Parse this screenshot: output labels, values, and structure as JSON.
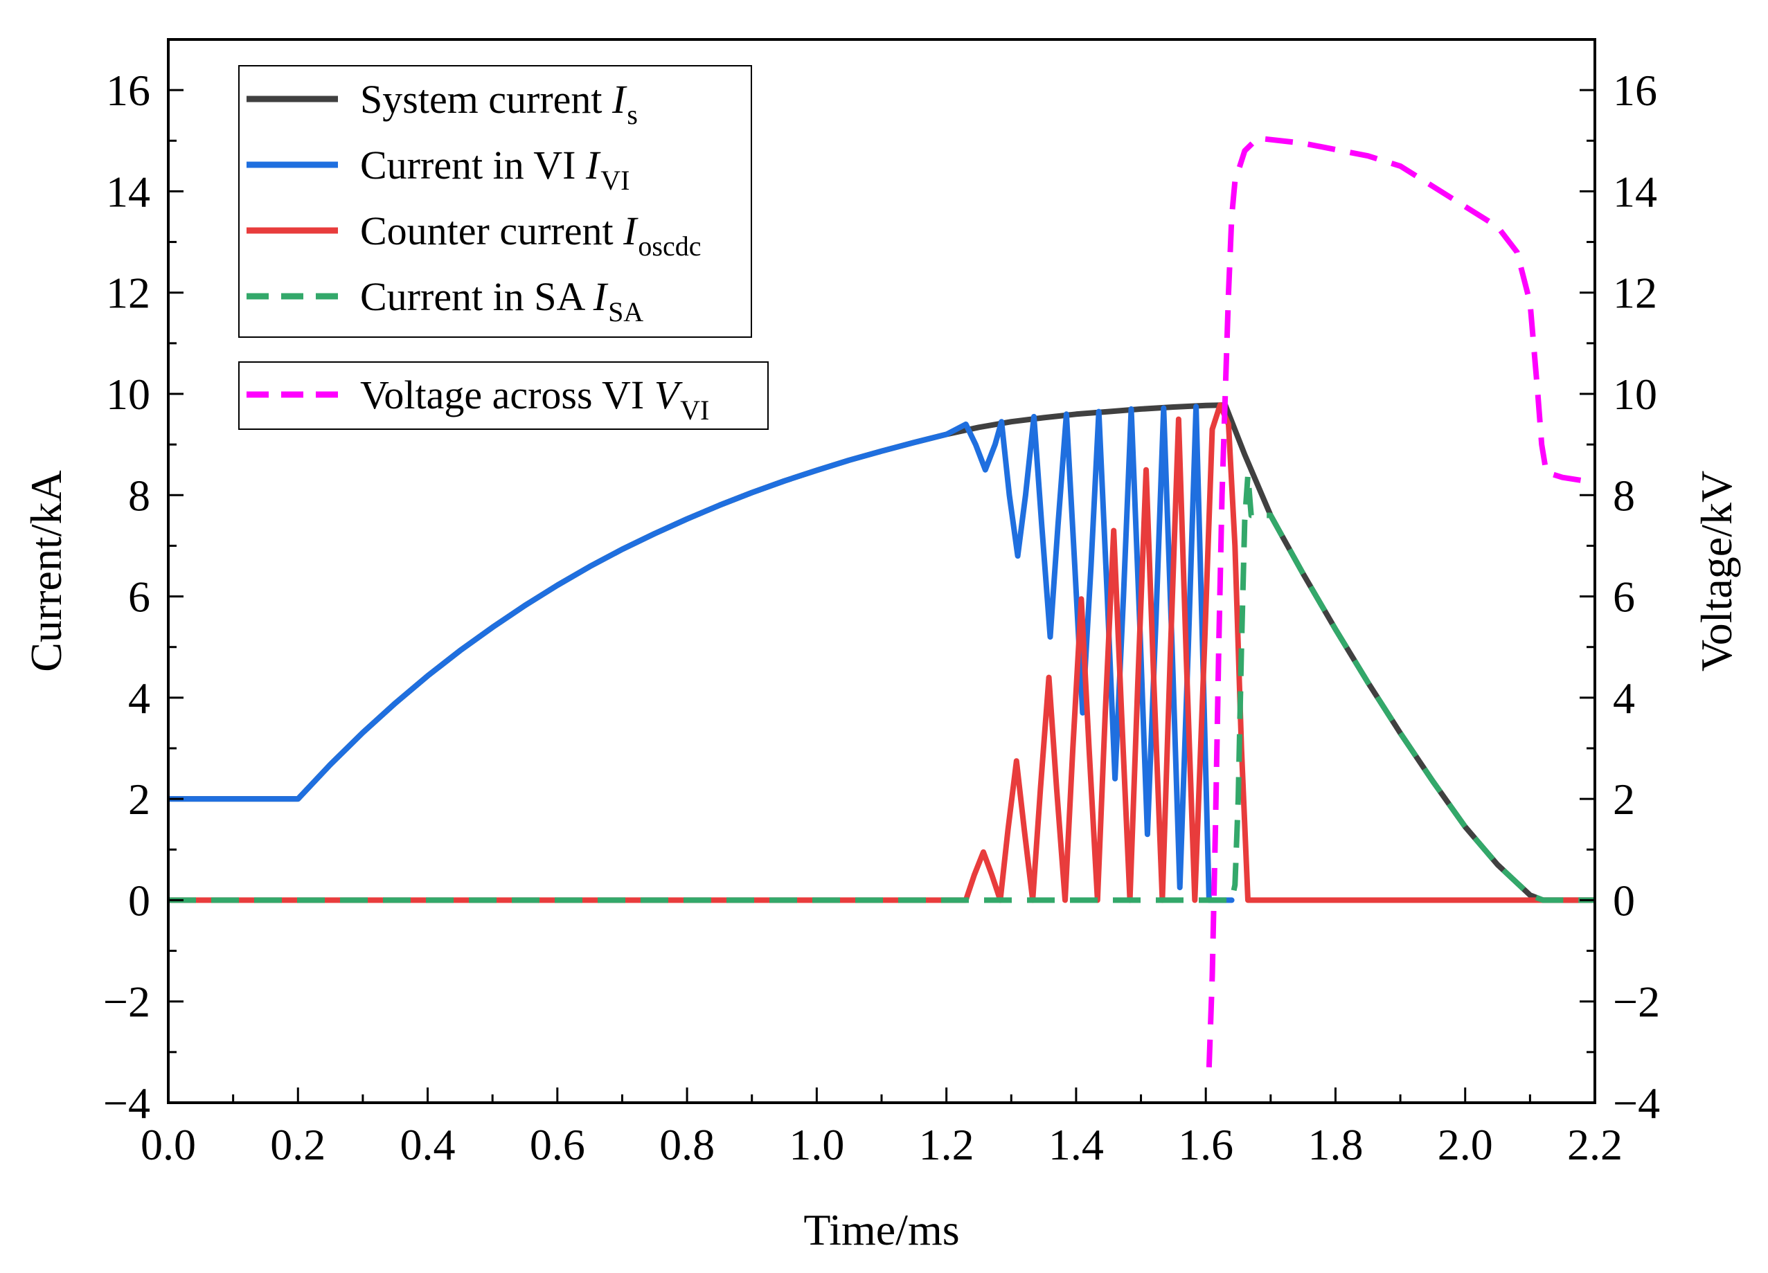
{
  "chart_data": {
    "type": "line",
    "title": "",
    "xlabel": "Time/ms",
    "ylabel_left": "Current/kA",
    "ylabel_right": "Voltage/kV",
    "xlim": [
      0,
      2.2
    ],
    "ylim_left": [
      -4,
      17
    ],
    "ylim_right": [
      -4,
      17
    ],
    "x_ticks": [
      0,
      0.2,
      0.4,
      0.6,
      0.8,
      1.0,
      1.2,
      1.4,
      1.6,
      1.8,
      2.0,
      2.2
    ],
    "x_tick_labels": [
      "0.0",
      "0.2",
      "0.4",
      "0.6",
      "0.8",
      "1.0",
      "1.2",
      "1.4",
      "1.6",
      "1.8",
      "2.0",
      "2.2"
    ],
    "y_ticks": [
      -4,
      -2,
      0,
      2,
      4,
      6,
      8,
      10,
      12,
      14,
      16
    ],
    "y_tick_labels": [
      "−4",
      "−2",
      "0",
      "2",
      "4",
      "6",
      "8",
      "10",
      "12",
      "14",
      "16"
    ],
    "grid": false,
    "legend_position": "top-left",
    "series": [
      {
        "id": "is",
        "name": "System current Is",
        "legend_main": "System current ",
        "legend_var": "I",
        "legend_sub": "s",
        "axis": "left",
        "color": "#404040",
        "dash": "solid",
        "points": [
          [
            0,
            2
          ],
          [
            0.2,
            2
          ],
          [
            0.25,
            2.68
          ],
          [
            0.3,
            3.31
          ],
          [
            0.35,
            3.89
          ],
          [
            0.4,
            4.43
          ],
          [
            0.45,
            4.93
          ],
          [
            0.5,
            5.39
          ],
          [
            0.55,
            5.82
          ],
          [
            0.6,
            6.22
          ],
          [
            0.65,
            6.59
          ],
          [
            0.7,
            6.93
          ],
          [
            0.75,
            7.24
          ],
          [
            0.8,
            7.53
          ],
          [
            0.85,
            7.8
          ],
          [
            0.9,
            8.05
          ],
          [
            0.95,
            8.28
          ],
          [
            1.0,
            8.49
          ],
          [
            1.05,
            8.69
          ],
          [
            1.1,
            8.87
          ],
          [
            1.15,
            9.04
          ],
          [
            1.2,
            9.2
          ],
          [
            1.25,
            9.34
          ],
          [
            1.3,
            9.45
          ],
          [
            1.35,
            9.53
          ],
          [
            1.4,
            9.6
          ],
          [
            1.45,
            9.65
          ],
          [
            1.5,
            9.7
          ],
          [
            1.55,
            9.74
          ],
          [
            1.6,
            9.77
          ],
          [
            1.63,
            9.78
          ],
          [
            1.66,
            8.8
          ],
          [
            1.7,
            7.6
          ],
          [
            1.75,
            6.45
          ],
          [
            1.8,
            5.35
          ],
          [
            1.85,
            4.3
          ],
          [
            1.9,
            3.3
          ],
          [
            1.95,
            2.35
          ],
          [
            2.0,
            1.45
          ],
          [
            2.05,
            0.7
          ],
          [
            2.1,
            0.1
          ],
          [
            2.12,
            0
          ],
          [
            2.2,
            0
          ]
        ]
      },
      {
        "id": "ivi",
        "name": "Current in VI IVI",
        "legend_main": "Current in VI ",
        "legend_var": "I",
        "legend_sub": "VI",
        "axis": "left",
        "color": "#1f6fdf",
        "dash": "solid",
        "points": [
          [
            0,
            2
          ],
          [
            0.2,
            2
          ],
          [
            0.25,
            2.68
          ],
          [
            0.3,
            3.31
          ],
          [
            0.35,
            3.89
          ],
          [
            0.4,
            4.43
          ],
          [
            0.45,
            4.93
          ],
          [
            0.5,
            5.39
          ],
          [
            0.55,
            5.82
          ],
          [
            0.6,
            6.22
          ],
          [
            0.65,
            6.59
          ],
          [
            0.7,
            6.93
          ],
          [
            0.75,
            7.24
          ],
          [
            0.8,
            7.53
          ],
          [
            0.85,
            7.8
          ],
          [
            0.9,
            8.05
          ],
          [
            0.95,
            8.28
          ],
          [
            1.0,
            8.49
          ],
          [
            1.05,
            8.69
          ],
          [
            1.1,
            8.87
          ],
          [
            1.15,
            9.04
          ],
          [
            1.2,
            9.2
          ],
          [
            1.23,
            9.4
          ],
          [
            1.245,
            9.0
          ],
          [
            1.26,
            8.5
          ],
          [
            1.275,
            9.0
          ],
          [
            1.285,
            9.45
          ],
          [
            1.297,
            8.0
          ],
          [
            1.31,
            6.8
          ],
          [
            1.322,
            8.0
          ],
          [
            1.335,
            9.55
          ],
          [
            1.347,
            7.4
          ],
          [
            1.36,
            5.2
          ],
          [
            1.372,
            7.4
          ],
          [
            1.385,
            9.6
          ],
          [
            1.398,
            6.6
          ],
          [
            1.41,
            3.7
          ],
          [
            1.423,
            6.6
          ],
          [
            1.435,
            9.65
          ],
          [
            1.448,
            6.0
          ],
          [
            1.46,
            2.4
          ],
          [
            1.473,
            6.0
          ],
          [
            1.485,
            9.7
          ],
          [
            1.498,
            5.5
          ],
          [
            1.51,
            1.3
          ],
          [
            1.523,
            5.5
          ],
          [
            1.535,
            9.72
          ],
          [
            1.548,
            5.0
          ],
          [
            1.56,
            0.25
          ],
          [
            1.573,
            5.0
          ],
          [
            1.585,
            9.75
          ],
          [
            1.595,
            5.0
          ],
          [
            1.605,
            0
          ],
          [
            1.64,
            0
          ]
        ]
      },
      {
        "id": "iosc",
        "name": "Counter current Ioscdc",
        "legend_main": "Counter current ",
        "legend_var": "I",
        "legend_sub": "oscdc",
        "axis": "left",
        "color": "#e83c3c",
        "dash": "solid",
        "points": [
          [
            0,
            0
          ],
          [
            1.23,
            0
          ],
          [
            1.243,
            0.5
          ],
          [
            1.257,
            0.95
          ],
          [
            1.27,
            0.5
          ],
          [
            1.283,
            0
          ],
          [
            1.295,
            1.4
          ],
          [
            1.308,
            2.75
          ],
          [
            1.32,
            1.4
          ],
          [
            1.333,
            0
          ],
          [
            1.345,
            2.2
          ],
          [
            1.358,
            4.4
          ],
          [
            1.37,
            2.2
          ],
          [
            1.383,
            0
          ],
          [
            1.395,
            3.0
          ],
          [
            1.408,
            5.95
          ],
          [
            1.42,
            3.0
          ],
          [
            1.433,
            0
          ],
          [
            1.445,
            3.7
          ],
          [
            1.458,
            7.3
          ],
          [
            1.47,
            3.7
          ],
          [
            1.483,
            0
          ],
          [
            1.495,
            4.25
          ],
          [
            1.508,
            8.5
          ],
          [
            1.52,
            4.25
          ],
          [
            1.533,
            0
          ],
          [
            1.545,
            4.75
          ],
          [
            1.558,
            9.5
          ],
          [
            1.57,
            4.75
          ],
          [
            1.583,
            0
          ],
          [
            1.598,
            5.0
          ],
          [
            1.61,
            9.3
          ],
          [
            1.622,
            9.78
          ],
          [
            1.635,
            9.4
          ],
          [
            1.645,
            7.0
          ],
          [
            1.655,
            3.0
          ],
          [
            1.665,
            0
          ],
          [
            2.2,
            0
          ]
        ]
      },
      {
        "id": "isa",
        "name": "Current in SA ISA",
        "legend_main": "Current in SA ",
        "legend_var": "I",
        "legend_sub": "SA",
        "axis": "left",
        "color": "#33a86a",
        "dash": "dashed",
        "points": [
          [
            0,
            0
          ],
          [
            1.64,
            0
          ],
          [
            1.645,
            0.3
          ],
          [
            1.65,
            2.0
          ],
          [
            1.655,
            5.0
          ],
          [
            1.66,
            7.5
          ],
          [
            1.665,
            8.4
          ],
          [
            1.67,
            7.6
          ],
          [
            1.7,
            7.6
          ],
          [
            1.75,
            6.45
          ],
          [
            1.8,
            5.35
          ],
          [
            1.85,
            4.3
          ],
          [
            1.9,
            3.3
          ],
          [
            1.95,
            2.35
          ],
          [
            2.0,
            1.45
          ],
          [
            2.05,
            0.7
          ],
          [
            2.1,
            0.1
          ],
          [
            2.12,
            0
          ],
          [
            2.2,
            0
          ]
        ]
      },
      {
        "id": "vvi",
        "name": "Voltage across VI VVI",
        "legend_main": "Voltage across VI ",
        "legend_var": "V",
        "legend_sub": "VI",
        "axis": "right",
        "color": "#ff00ff",
        "dash": "dashed",
        "points": [
          [
            1.605,
            -3.3
          ],
          [
            1.61,
            -1.5
          ],
          [
            1.615,
            1.5
          ],
          [
            1.62,
            5.0
          ],
          [
            1.625,
            8.0
          ],
          [
            1.63,
            10.0
          ],
          [
            1.635,
            12.0
          ],
          [
            1.64,
            13.5
          ],
          [
            1.645,
            14.2
          ],
          [
            1.66,
            14.8
          ],
          [
            1.68,
            15.05
          ],
          [
            1.75,
            14.95
          ],
          [
            1.85,
            14.7
          ],
          [
            1.9,
            14.5
          ],
          [
            1.95,
            14.1
          ],
          [
            2.0,
            13.7
          ],
          [
            2.05,
            13.3
          ],
          [
            2.08,
            12.8
          ],
          [
            2.1,
            11.8
          ],
          [
            2.112,
            10.0
          ],
          [
            2.118,
            9.0
          ],
          [
            2.125,
            8.45
          ],
          [
            2.15,
            8.35
          ],
          [
            2.2,
            8.25
          ]
        ]
      }
    ]
  }
}
